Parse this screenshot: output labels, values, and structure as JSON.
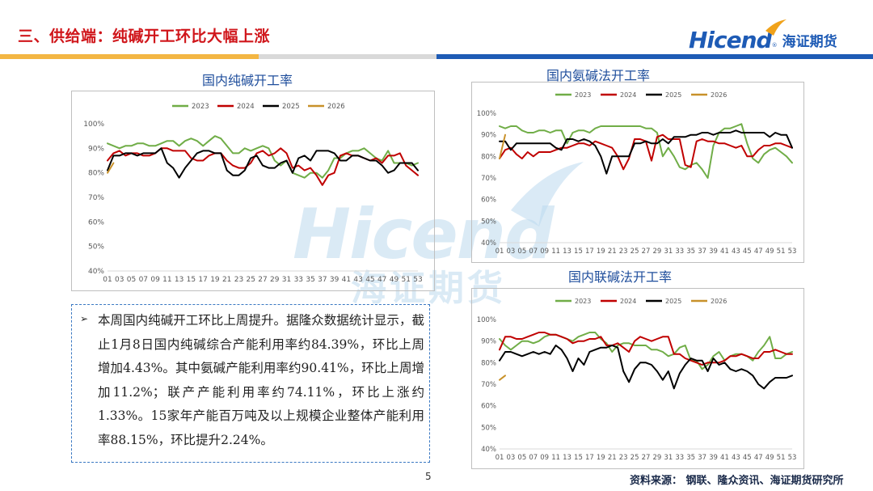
{
  "header": {
    "title": "三、供给端：纯碱开工环比大幅上涨"
  },
  "logo": {
    "text_en": "Hicend",
    "text_cn": "海证期货",
    "brand_color": "#1e5bb5"
  },
  "watermark": {
    "text_en": "Hicend",
    "text_cn": "海证期货"
  },
  "colors": {
    "2023": "#70ad47",
    "2024": "#c00000",
    "2025": "#000000",
    "2026": "#c8912a"
  },
  "text_panel": {
    "bullet": "➢",
    "body": "本周国内纯碱开工环比上周提升。据隆众数据统计显示，截止1月8日国内纯碱综合产能利用率约84.39%，环比上周增加4.43%。其中氨碱产能利用率约90.41%，环比上周增加11.2%；联产产能利用率约74.11%，环比上涨约1.33%。15家年产能百万吨及以上规模企业整体产能利用率88.15%，环比提升2.24%。"
  },
  "footer": {
    "page": "5",
    "source": "资料来源：  钢联、隆众资讯、海证期货研究所"
  },
  "chart_data": [
    {
      "id": "total",
      "type": "line",
      "title": "国内纯碱开工率",
      "x_ticks": [
        "01",
        "03",
        "05",
        "07",
        "09",
        "11",
        "13",
        "15",
        "17",
        "19",
        "21",
        "23",
        "25",
        "27",
        "29",
        "31",
        "33",
        "35",
        "37",
        "39",
        "41",
        "43",
        "45",
        "47",
        "49",
        "51",
        "53"
      ],
      "y_ticks": [
        "40%",
        "50%",
        "60%",
        "70%",
        "80%",
        "90%",
        "100%"
      ],
      "ylim": [
        40,
        100
      ],
      "legend": "top",
      "series": [
        {
          "name": "2023",
          "values": [
            92,
            91,
            90,
            91,
            91,
            92,
            92,
            91,
            91,
            92,
            93,
            93,
            91,
            93,
            94,
            93,
            91,
            93,
            95,
            94,
            91,
            88,
            88,
            90,
            89,
            90,
            91,
            90,
            85,
            83,
            85,
            80,
            79,
            78,
            80,
            80,
            78,
            81,
            86,
            86,
            88,
            89,
            89,
            90,
            88,
            86,
            85,
            89,
            84,
            84,
            84,
            83,
            84
          ]
        },
        {
          "name": "2024",
          "values": [
            85,
            88,
            89,
            87,
            88,
            88,
            87,
            87,
            88,
            90,
            90,
            89,
            89,
            89,
            86,
            85,
            85,
            87,
            88,
            88,
            85,
            83,
            82,
            82,
            84,
            88,
            89,
            87,
            88,
            90,
            88,
            82,
            83,
            81,
            82,
            79,
            75,
            79,
            80,
            87,
            88,
            87,
            87,
            86,
            85,
            86,
            84,
            87,
            87,
            88,
            83,
            81,
            79
          ]
        },
        {
          "name": "2025",
          "values": [
            81,
            87,
            87,
            88,
            88,
            87,
            88,
            88,
            88,
            90,
            84,
            82,
            78,
            82,
            85,
            88,
            89,
            89,
            88,
            88,
            81,
            79,
            79,
            81,
            86,
            87,
            83,
            82,
            82,
            84,
            85,
            80,
            86,
            87,
            85,
            89,
            89,
            89,
            88,
            85,
            85,
            87,
            87,
            86,
            85,
            85,
            83,
            80,
            81,
            84,
            84,
            84,
            81
          ]
        },
        {
          "name": "2026",
          "values": [
            80,
            84
          ]
        }
      ]
    },
    {
      "id": "ammonia",
      "type": "line",
      "title": "国内氨碱法开工率",
      "x_ticks": [
        "01",
        "03",
        "05",
        "07",
        "09",
        "11",
        "13",
        "15",
        "17",
        "19",
        "21",
        "23",
        "25",
        "27",
        "29",
        "31",
        "33",
        "35",
        "37",
        "39",
        "41",
        "43",
        "45",
        "47",
        "49",
        "51",
        "53"
      ],
      "y_ticks": [
        "40%",
        "50%",
        "60%",
        "70%",
        "80%",
        "90%",
        "100%"
      ],
      "ylim": [
        40,
        100
      ],
      "legend": "top",
      "series": [
        {
          "name": "2023",
          "values": [
            94,
            93,
            94,
            94,
            92,
            91,
            91,
            92,
            92,
            91,
            92,
            92,
            86,
            91,
            92,
            92,
            91,
            93,
            94,
            94,
            94,
            94,
            94,
            94,
            94,
            94,
            93,
            93,
            91,
            80,
            84,
            80,
            75,
            74,
            76,
            77,
            74,
            70,
            85,
            91,
            93,
            93,
            94,
            95,
            86,
            79,
            77,
            81,
            83,
            84,
            82,
            80,
            77
          ]
        },
        {
          "name": "2024",
          "values": [
            79,
            83,
            84,
            81,
            79,
            82,
            80,
            82,
            82,
            82,
            83,
            84,
            84,
            85,
            86,
            86,
            85,
            87,
            86,
            85,
            84,
            80,
            74,
            79,
            88,
            88,
            87,
            78,
            89,
            90,
            88,
            88,
            88,
            76,
            75,
            87,
            88,
            87,
            87,
            86,
            86,
            85,
            84,
            85,
            80,
            80,
            83,
            85,
            85,
            86,
            86,
            85,
            84
          ]
        },
        {
          "name": "2025",
          "values": [
            87,
            87,
            83,
            86,
            86,
            86,
            86,
            86,
            86,
            86,
            84,
            83,
            88,
            88,
            87,
            88,
            87,
            85,
            80,
            72,
            80,
            80,
            80,
            80,
            86,
            86,
            87,
            86,
            86,
            88,
            86,
            89,
            89,
            89,
            90,
            90,
            91,
            91,
            90,
            91,
            91,
            91,
            92,
            91,
            91,
            91,
            91,
            91,
            89,
            91,
            90,
            90,
            84
          ]
        },
        {
          "name": "2026",
          "values": [
            79,
            90
          ]
        }
      ]
    },
    {
      "id": "joint",
      "type": "line",
      "title": "国内联碱法开工率",
      "x_ticks": [
        "01",
        "03",
        "05",
        "07",
        "09",
        "11",
        "13",
        "15",
        "17",
        "19",
        "21",
        "23",
        "25",
        "27",
        "29",
        "31",
        "33",
        "35",
        "37",
        "39",
        "41",
        "43",
        "45",
        "47",
        "49",
        "51",
        "53"
      ],
      "y_ticks": [
        "40%",
        "50%",
        "60%",
        "70%",
        "80%",
        "90%",
        "100%"
      ],
      "ylim": [
        40,
        100
      ],
      "legend": "top",
      "series": [
        {
          "name": "2023",
          "values": [
            91,
            88,
            86,
            88,
            90,
            90,
            89,
            90,
            92,
            93,
            93,
            92,
            91,
            90,
            92,
            93,
            94,
            94,
            91,
            89,
            85,
            88,
            89,
            89,
            88,
            88,
            88,
            86,
            86,
            85,
            83,
            84,
            87,
            88,
            81,
            81,
            77,
            79,
            83,
            85,
            81,
            83,
            84,
            84,
            83,
            81,
            85,
            88,
            92,
            82,
            82,
            84,
            85
          ]
        },
        {
          "name": "2024",
          "values": [
            86,
            92,
            92,
            91,
            91,
            92,
            93,
            94,
            94,
            93,
            93,
            92,
            91,
            89,
            90,
            90,
            91,
            91,
            92,
            88,
            88,
            89,
            87,
            85,
            90,
            92,
            91,
            90,
            91,
            92,
            92,
            84,
            84,
            82,
            81,
            80,
            79,
            80,
            80,
            80,
            81,
            83,
            83,
            84,
            83,
            82,
            82,
            85,
            85,
            86,
            85,
            84,
            84
          ]
        },
        {
          "name": "2025",
          "values": [
            81,
            85,
            85,
            84,
            83,
            84,
            85,
            84,
            85,
            84,
            88,
            86,
            82,
            76,
            82,
            79,
            85,
            86,
            87,
            87,
            88,
            87,
            76,
            71,
            77,
            80,
            80,
            79,
            76,
            72,
            76,
            68,
            75,
            79,
            82,
            81,
            81,
            76,
            82,
            79,
            80,
            77,
            76,
            77,
            76,
            74,
            70,
            68,
            71,
            73,
            73,
            73,
            74
          ]
        },
        {
          "name": "2026",
          "values": [
            72,
            74
          ]
        }
      ]
    }
  ]
}
